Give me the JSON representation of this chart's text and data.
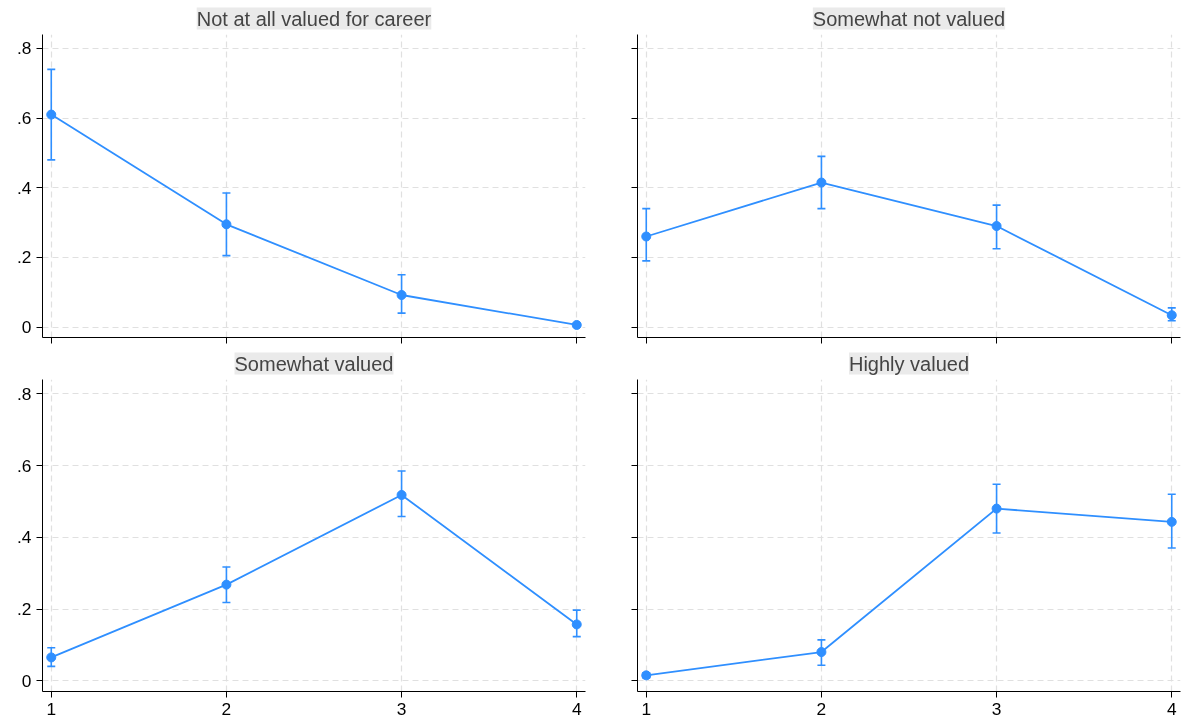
{
  "chart_data": [
    {
      "type": "line",
      "title": "Not at all valued for career",
      "x": [
        1,
        2,
        3,
        4
      ],
      "xlim": [
        0.95,
        4.05
      ],
      "xticks": [
        {
          "value": 1,
          "label": null
        },
        {
          "value": 2,
          "label": null
        },
        {
          "value": 3,
          "label": null
        },
        {
          "value": 4,
          "label": null
        }
      ],
      "ylim": [
        -0.03,
        0.84
      ],
      "yticks": [
        {
          "value": 0,
          "label": "0"
        },
        {
          "value": 0.2,
          "label": ".2"
        },
        {
          "value": 0.4,
          "label": ".4"
        },
        {
          "value": 0.6,
          "label": ".6"
        },
        {
          "value": 0.8,
          "label": ".8"
        }
      ],
      "grid": true,
      "marker": "circle",
      "tick_labels": "y",
      "series": [
        {
          "color": "#2f8fff",
          "values": [
            0.61,
            0.295,
            0.092,
            0.006
          ],
          "errors": [
            [
              0.48,
              0.74
            ],
            [
              0.205,
              0.385
            ],
            [
              0.04,
              0.15
            ],
            [
              0.002,
              0.01
            ]
          ]
        }
      ]
    },
    {
      "type": "line",
      "title": "Somewhat not valued",
      "x": [
        1,
        2,
        3,
        4
      ],
      "xlim": [
        0.95,
        4.05
      ],
      "xticks": [
        {
          "value": 1,
          "label": null
        },
        {
          "value": 2,
          "label": null
        },
        {
          "value": 3,
          "label": null
        },
        {
          "value": 4,
          "label": null
        }
      ],
      "ylim": [
        -0.03,
        0.84
      ],
      "yticks": [
        {
          "value": 0,
          "label": null
        },
        {
          "value": 0.2,
          "label": null
        },
        {
          "value": 0.4,
          "label": null
        },
        {
          "value": 0.6,
          "label": null
        },
        {
          "value": 0.8,
          "label": null
        }
      ],
      "grid": true,
      "marker": "circle",
      "tick_labels": false,
      "series": [
        {
          "color": "#2f8fff",
          "values": [
            0.26,
            0.415,
            0.29,
            0.034
          ],
          "errors": [
            [
              0.19,
              0.34
            ],
            [
              0.34,
              0.49
            ],
            [
              0.225,
              0.35
            ],
            [
              0.018,
              0.055
            ]
          ]
        }
      ]
    },
    {
      "type": "line",
      "title": "Somewhat valued",
      "x": [
        1,
        2,
        3,
        4
      ],
      "xlim": [
        0.95,
        4.05
      ],
      "xticks": [
        1,
        2,
        3,
        4
      ],
      "ylim": [
        -0.03,
        0.84
      ],
      "yticks": [
        {
          "value": 0,
          "label": "0"
        },
        {
          "value": 0.2,
          "label": ".2"
        },
        {
          "value": 0.4,
          "label": ".4"
        },
        {
          "value": 0.6,
          "label": ".6"
        },
        {
          "value": 0.8,
          "label": ".8"
        }
      ],
      "grid": true,
      "marker": "circle",
      "series": [
        {
          "color": "#2f8fff",
          "values": [
            0.065,
            0.268,
            0.518,
            0.157
          ],
          "errors": [
            [
              0.04,
              0.092
            ],
            [
              0.218,
              0.317
            ],
            [
              0.458,
              0.585
            ],
            [
              0.123,
              0.197
            ]
          ]
        }
      ]
    },
    {
      "type": "line",
      "title": "Highly valued",
      "x": [
        1,
        2,
        3,
        4
      ],
      "xlim": [
        0.95,
        4.05
      ],
      "xticks": [
        1,
        2,
        3,
        4
      ],
      "ylim": [
        -0.03,
        0.84
      ],
      "yticks": [
        {
          "value": 0,
          "label": null
        },
        {
          "value": 0.2,
          "label": null
        },
        {
          "value": 0.4,
          "label": null
        },
        {
          "value": 0.6,
          "label": null
        },
        {
          "value": 0.8,
          "label": null
        }
      ],
      "grid": true,
      "marker": "circle",
      "tick_labels": "x",
      "series": [
        {
          "color": "#2f8fff",
          "values": [
            0.015,
            0.08,
            0.48,
            0.443
          ],
          "errors": [
            [
              0.008,
              0.022
            ],
            [
              0.043,
              0.114
            ],
            [
              0.412,
              0.548
            ],
            [
              0.37,
              0.52
            ]
          ]
        }
      ]
    }
  ]
}
